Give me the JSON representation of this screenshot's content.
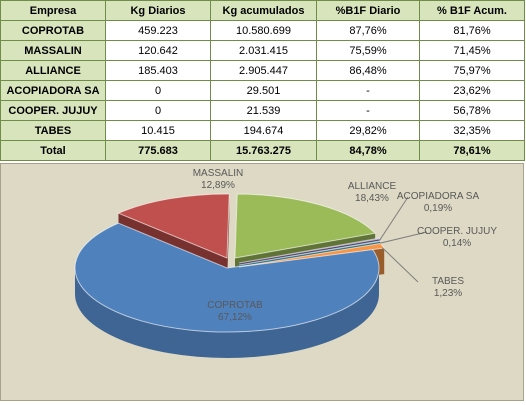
{
  "table": {
    "headers": [
      "Empresa",
      "Kg Diarios",
      "Kg acumulados",
      "%B1F Diario",
      "% B1F Acum."
    ],
    "rows": [
      [
        "COPROTAB",
        "459.223",
        "10.580.699",
        "87,76%",
        "81,76%"
      ],
      [
        "MASSALIN",
        "120.642",
        "2.031.415",
        "75,59%",
        "71,45%"
      ],
      [
        "ALLIANCE",
        "185.403",
        "2.905.447",
        "86,48%",
        "75,97%"
      ],
      [
        "ACOPIADORA SA",
        "0",
        "29.501",
        "-",
        "23,62%"
      ],
      [
        "COOPER. JUJUY",
        "0",
        "21.539",
        "-",
        "56,78%"
      ],
      [
        "TABES",
        "10.415",
        "194.674",
        "29,82%",
        "32,35%"
      ],
      [
        "Total",
        "775.683",
        "15.763.275",
        "84,78%",
        "78,61%"
      ]
    ]
  },
  "chart_data": {
    "type": "pie",
    "title": "",
    "slices": [
      {
        "label": "COPROTAB",
        "value": 67.12,
        "pct": "67,12%",
        "color": "#4f81bd"
      },
      {
        "label": "MASSALIN",
        "value": 12.89,
        "pct": "12,89%",
        "color": "#c0504d"
      },
      {
        "label": "ALLIANCE",
        "value": 18.43,
        "pct": "18,43%",
        "color": "#9bbb59"
      },
      {
        "label": "ACOPIADORA SA",
        "value": 0.19,
        "pct": "0,19%",
        "color": "#8064a2"
      },
      {
        "label": "COOPER. JUJUY",
        "value": 0.14,
        "pct": "0,14%",
        "color": "#4bacc6"
      },
      {
        "label": "TABES",
        "value": 1.23,
        "pct": "1,23%",
        "color": "#f79646"
      }
    ],
    "legend": "none"
  }
}
